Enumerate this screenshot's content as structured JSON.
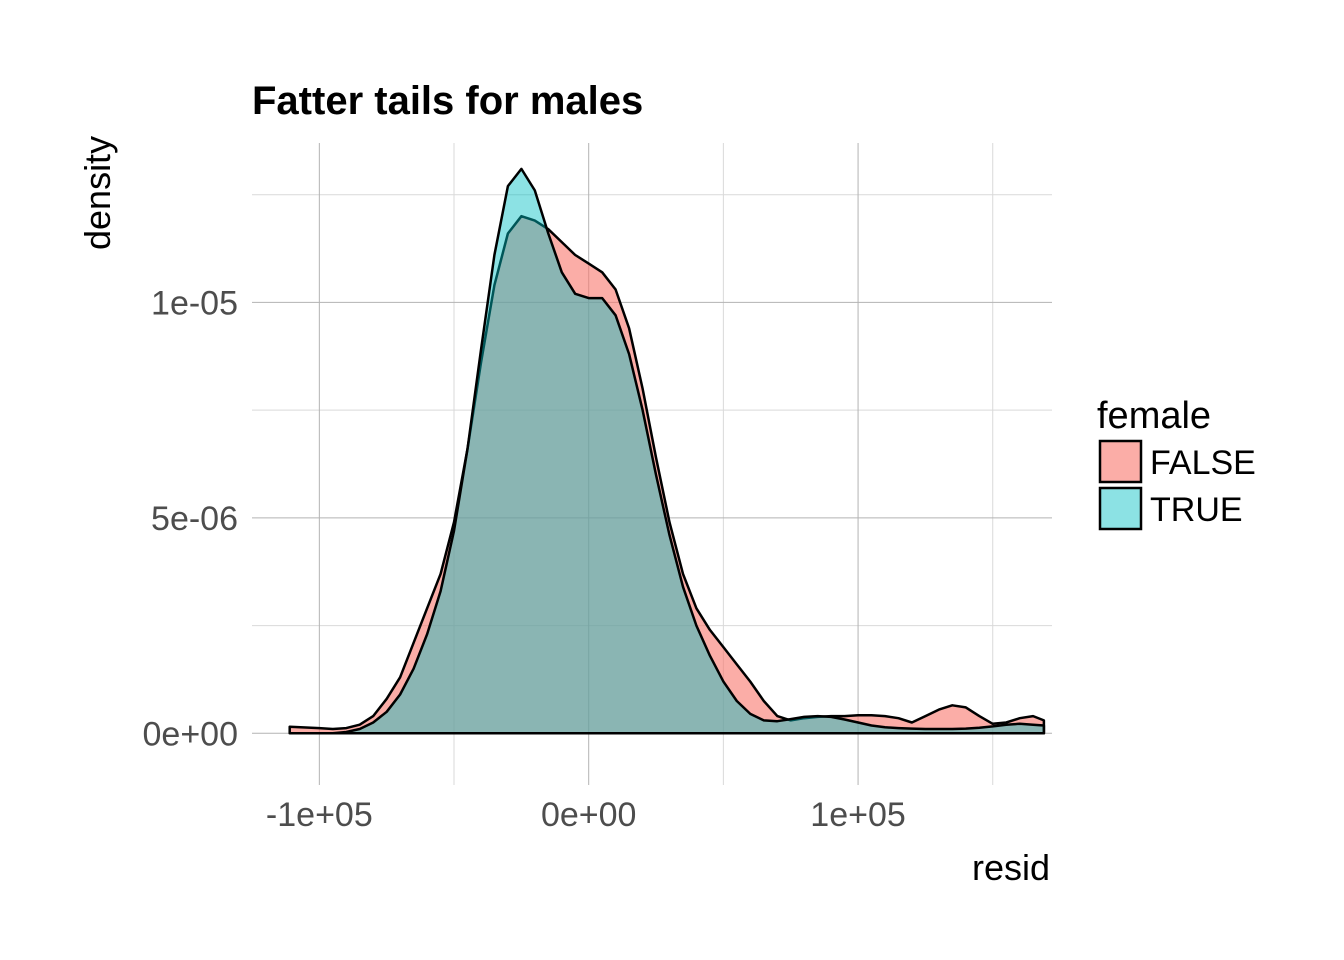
{
  "chart_data": {
    "type": "area",
    "title": "Fatter tails for males",
    "xlabel": "resid",
    "ylabel": "density",
    "xlim": [
      -125000,
      172000
    ],
    "ylim": [
      -1.2e-06,
      1.37e-05
    ],
    "x_ticks": [
      {
        "value": -100000,
        "label": "-1e+05"
      },
      {
        "value": 0,
        "label": "0e+00"
      },
      {
        "value": 100000,
        "label": "1e+05"
      }
    ],
    "x_minor_grid": [
      -50000,
      50000,
      150000
    ],
    "y_ticks": [
      {
        "value": 0,
        "label": "0e+00"
      },
      {
        "value": 5e-06,
        "label": "5e-06"
      },
      {
        "value": 1e-05,
        "label": "1e-05"
      }
    ],
    "y_minor_grid": [
      2.5e-06,
      7.5e-06,
      1.25e-05
    ],
    "grid": true,
    "legend": {
      "title": "female",
      "position": "right"
    },
    "series": [
      {
        "name": "FALSE",
        "color": "#F8766D",
        "opacity": 0.6,
        "x": [
          -111000,
          -100000,
          -95000,
          -90000,
          -85000,
          -80000,
          -75000,
          -70000,
          -65000,
          -60000,
          -55000,
          -50000,
          -45000,
          -40000,
          -35000,
          -30000,
          -25000,
          -20000,
          -15000,
          -10000,
          -5000,
          0,
          5000,
          10000,
          15000,
          20000,
          25000,
          30000,
          35000,
          40000,
          45000,
          50000,
          55000,
          60000,
          65000,
          70000,
          75000,
          80000,
          85000,
          90000,
          95000,
          100000,
          105000,
          110000,
          115000,
          120000,
          125000,
          130000,
          135000,
          140000,
          145000,
          150000,
          155000,
          160000,
          165000,
          169000
        ],
        "y": [
          1.5e-07,
          1.2e-07,
          1e-07,
          1.2e-07,
          2e-07,
          4e-07,
          8e-07,
          1.3e-06,
          2.1e-06,
          2.9e-06,
          3.7e-06,
          4.9e-06,
          6.6e-06,
          8.6e-06,
          1.04e-05,
          1.16e-05,
          1.2e-05,
          1.19e-05,
          1.17e-05,
          1.14e-05,
          1.11e-05,
          1.09e-05,
          1.07e-05,
          1.03e-05,
          9.4e-06,
          8e-06,
          6.4e-06,
          4.9e-06,
          3.7e-06,
          2.9e-06,
          2.4e-06,
          2e-06,
          1.6e-06,
          1.2e-06,
          7.5e-07,
          4e-07,
          3e-07,
          3.5e-07,
          3.8e-07,
          4e-07,
          4e-07,
          4.2e-07,
          4.2e-07,
          4e-07,
          3.5e-07,
          2.5e-07,
          4e-07,
          5.5e-07,
          6.5e-07,
          6e-07,
          4e-07,
          2.2e-07,
          2.5e-07,
          3.5e-07,
          4e-07,
          3e-07
        ]
      },
      {
        "name": "TRUE",
        "color": "#00BFC4",
        "opacity": 0.45,
        "x": [
          -95000,
          -90000,
          -85000,
          -80000,
          -75000,
          -70000,
          -65000,
          -60000,
          -55000,
          -50000,
          -45000,
          -40000,
          -35000,
          -30000,
          -25000,
          -20000,
          -15000,
          -10000,
          -5000,
          0,
          5000,
          10000,
          15000,
          20000,
          25000,
          30000,
          35000,
          40000,
          45000,
          50000,
          55000,
          60000,
          65000,
          70000,
          75000,
          80000,
          85000,
          90000,
          95000,
          100000,
          105000,
          110000,
          115000,
          120000,
          125000,
          130000,
          135000,
          140000,
          145000,
          150000,
          155000,
          160000,
          165000,
          169000
        ],
        "y": [
          0,
          3e-08,
          1e-07,
          2.5e-07,
          5e-07,
          9e-07,
          1.5e-06,
          2.3e-06,
          3.3e-06,
          4.7e-06,
          6.6e-06,
          8.9e-06,
          1.11e-05,
          1.27e-05,
          1.31e-05,
          1.26e-05,
          1.16e-05,
          1.07e-05,
          1.02e-05,
          1.01e-05,
          1.01e-05,
          9.7e-06,
          8.8e-06,
          7.5e-06,
          6e-06,
          4.6e-06,
          3.4e-06,
          2.5e-06,
          1.8e-06,
          1.2e-06,
          7.5e-07,
          4.5e-07,
          3e-07,
          2.8e-07,
          3.3e-07,
          3.8e-07,
          4e-07,
          3.8e-07,
          3.2e-07,
          2.5e-07,
          1.8e-07,
          1.4e-07,
          1.2e-07,
          1.1e-07,
          1e-07,
          1e-07,
          1e-07,
          1.1e-07,
          1.3e-07,
          1.6e-07,
          2e-07,
          2.2e-07,
          2e-07,
          1.8e-07
        ]
      }
    ]
  }
}
